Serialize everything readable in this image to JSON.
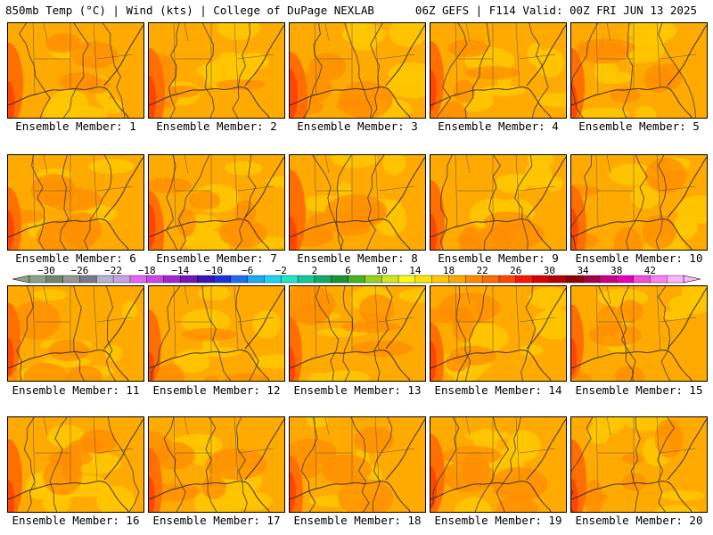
{
  "header": {
    "left": "850mb Temp (°C) | Wind (kts) | College of DuPage NEXLAB",
    "right": "06Z GEFS | F114 Valid: 00Z FRI JUN 13 2025"
  },
  "members": [
    {
      "label": "Ensemble Member: 1",
      "hot": 0.45
    },
    {
      "label": "Ensemble Member: 2",
      "hot": 0.5
    },
    {
      "label": "Ensemble Member: 3",
      "hot": 0.6
    },
    {
      "label": "Ensemble Member: 4",
      "hot": 0.35
    },
    {
      "label": "Ensemble Member: 5",
      "hot": 0.35
    },
    {
      "label": "Ensemble Member: 6",
      "hot": 0.35
    },
    {
      "label": "Ensemble Member: 7",
      "hot": 0.45
    },
    {
      "label": "Ensemble Member: 8",
      "hot": 0.5
    },
    {
      "label": "Ensemble Member: 9",
      "hot": 0.4
    },
    {
      "label": "Ensemble Member: 10",
      "hot": 0.45
    },
    {
      "label": "Ensemble Member: 11",
      "hot": 0.3
    },
    {
      "label": "Ensemble Member: 12",
      "hot": 0.3
    },
    {
      "label": "Ensemble Member: 13",
      "hot": 0.3
    },
    {
      "label": "Ensemble Member: 14",
      "hot": 0.35
    },
    {
      "label": "Ensemble Member: 15",
      "hot": 0.3
    },
    {
      "label": "Ensemble Member: 16",
      "hot": 0.4
    },
    {
      "label": "Ensemble Member: 17",
      "hot": 0.35
    },
    {
      "label": "Ensemble Member: 18",
      "hot": 0.35
    },
    {
      "label": "Ensemble Member: 19",
      "hot": 0.4
    },
    {
      "label": "Ensemble Member: 20",
      "hot": 0.45
    }
  ],
  "colorbar": {
    "ticks": [
      "−30",
      "−26",
      "−22",
      "−18",
      "−14",
      "−10",
      "−6",
      "−2",
      "2",
      "6",
      "10",
      "14",
      "18",
      "22",
      "26",
      "30",
      "34",
      "38",
      "42"
    ],
    "colors": [
      "#8aa38a",
      "#6e876e",
      "#969696",
      "#7a7a8a",
      "#b4b4d2",
      "#c8a0e6",
      "#e664f0",
      "#c846e6",
      "#a028d2",
      "#7814b4",
      "#3c14b4",
      "#1e32dc",
      "#1e6ef0",
      "#1eaaf0",
      "#1ed2f0",
      "#1ee6c8",
      "#14c896",
      "#14aa64",
      "#149632",
      "#46b41e",
      "#96d21e",
      "#d2e61e",
      "#fafa14",
      "#ffe600",
      "#ffc800",
      "#ffaa00",
      "#ff8c00",
      "#ff6e00",
      "#ff4600",
      "#ff1400",
      "#dc0000",
      "#b40000",
      "#8c0000",
      "#a00046",
      "#c80082",
      "#e600b4",
      "#f050dc",
      "#fa82f0",
      "#ffb4ff"
    ]
  }
}
